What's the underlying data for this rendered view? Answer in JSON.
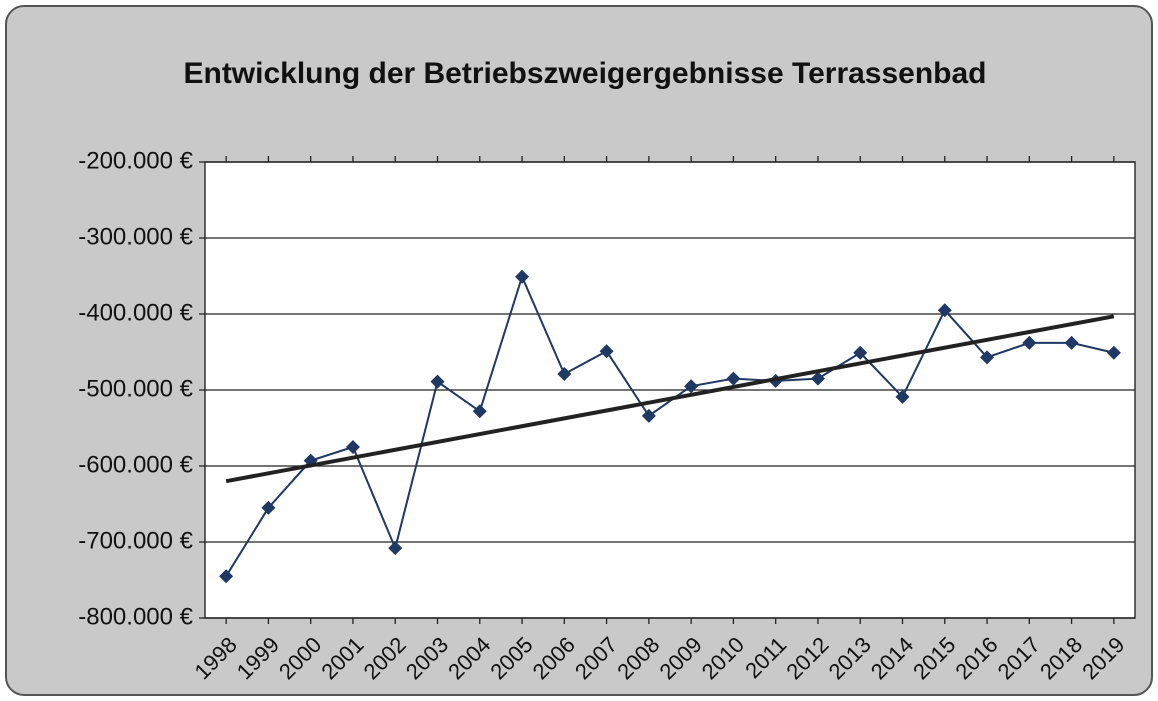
{
  "chart_data": {
    "type": "line",
    "title": "Entwicklung der Betriebszweigergebnisse Terrassenbad",
    "categories": [
      "1998",
      "1999",
      "2000",
      "2001",
      "2002",
      "2003",
      "2004",
      "2005",
      "2006",
      "2007",
      "2008",
      "2009",
      "2010",
      "2011",
      "2012",
      "2013",
      "2014",
      "2015",
      "2016",
      "2017",
      "2018",
      "2019"
    ],
    "series": [
      {
        "color": "#1f3864",
        "values": [
          -745000,
          -655000,
          -593000,
          -575000,
          -708000,
          -489000,
          -528000,
          -351000,
          -479000,
          -449000,
          -534000,
          -495000,
          -485000,
          -488000,
          -485000,
          -451000,
          -509000,
          -395000,
          -457000,
          -438000,
          -438000,
          -451000
        ]
      }
    ],
    "trendline": {
      "start": -620000,
      "end": -403000,
      "color": "#222222"
    },
    "ylim": [
      -800000,
      -200000
    ],
    "yticks": [
      {
        "value": -800000,
        "label": "-800.000 €"
      },
      {
        "value": -700000,
        "label": "-700.000 €"
      },
      {
        "value": -600000,
        "label": "-600.000 €"
      },
      {
        "value": -500000,
        "label": "-500.000 €"
      },
      {
        "value": -400000,
        "label": "-400.000 €"
      },
      {
        "value": -300000,
        "label": "-300.000 €"
      },
      {
        "value": -200000,
        "label": "-200.000 €"
      }
    ],
    "grid": true
  }
}
